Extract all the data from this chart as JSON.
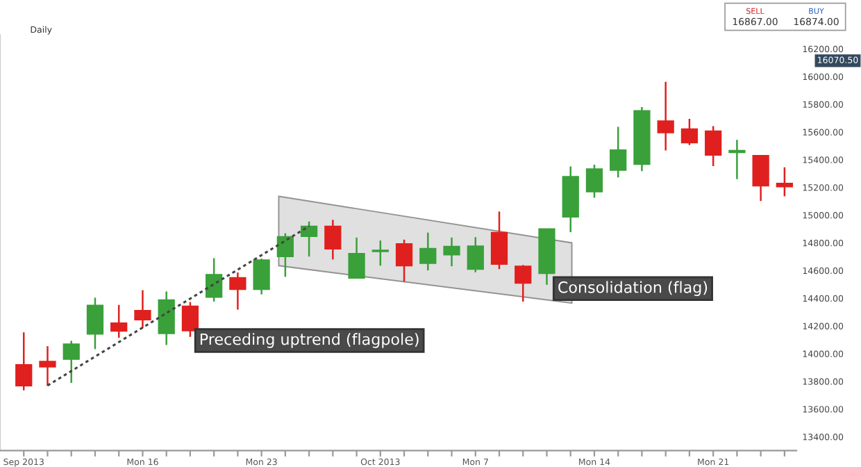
{
  "chart_data": {
    "type": "candlestick",
    "title": "Daily",
    "categories": [
      "Sep 2013",
      null,
      null,
      null,
      null,
      "Mon 16",
      null,
      null,
      null,
      null,
      "Mon 23",
      null,
      null,
      null,
      null,
      "Oct 2013",
      null,
      null,
      null,
      "Mon 7",
      null,
      null,
      null,
      null,
      "Mon 14",
      null,
      null,
      null,
      null,
      "Mon 21",
      null,
      null,
      null
    ],
    "ohlc": [
      [
        13920,
        14154,
        13735,
        13768
      ],
      [
        13944,
        14054,
        13768,
        13905
      ],
      [
        13960,
        14093,
        13789,
        14069
      ],
      [
        14142,
        14404,
        14033,
        14349
      ],
      [
        14221,
        14352,
        14115,
        14163
      ],
      [
        14312,
        14458,
        14185,
        14245
      ],
      [
        14145,
        14449,
        14063,
        14388
      ],
      [
        14343,
        14373,
        14121,
        14166
      ],
      [
        14407,
        14689,
        14376,
        14571
      ],
      [
        14549,
        14586,
        14318,
        14464
      ],
      [
        14464,
        14686,
        14428,
        14677
      ],
      [
        14701,
        14869,
        14555,
        14844
      ],
      [
        14847,
        14954,
        14701,
        14920
      ],
      [
        14920,
        14966,
        14680,
        14756
      ],
      [
        14546,
        14838,
        14543,
        14723
      ],
      [
        14738,
        14817,
        14635,
        14747
      ],
      [
        14793,
        14823,
        14519,
        14635
      ],
      [
        14652,
        14874,
        14601,
        14759
      ],
      [
        14713,
        14838,
        14631,
        14774
      ],
      [
        14610,
        14841,
        14588,
        14777
      ],
      [
        14874,
        15026,
        14610,
        14646
      ],
      [
        14631,
        14640,
        14376,
        14509
      ],
      [
        14579,
        14901,
        14497,
        14901
      ],
      [
        14987,
        15351,
        14877,
        15278
      ],
      [
        15169,
        15364,
        15126,
        15333
      ],
      [
        15324,
        15637,
        15272,
        15470
      ],
      [
        15367,
        15780,
        15318,
        15753
      ],
      [
        15680,
        15962,
        15467,
        15595
      ],
      [
        15622,
        15695,
        15506,
        15522
      ],
      [
        15607,
        15643,
        15354,
        15433
      ],
      [
        15452,
        15543,
        15260,
        15467
      ],
      [
        15430,
        15430,
        15102,
        15212
      ],
      [
        15230,
        15345,
        15136,
        15205
      ]
    ],
    "colors": [
      "#e0201e",
      "#e0201e",
      "#3aa03a",
      "#3aa03a",
      "#e0201e",
      "#e0201e",
      "#3aa03a",
      "#e0201e",
      "#3aa03a",
      "#e0201e",
      "#3aa03a",
      "#3aa03a",
      "#3aa03a",
      "#e0201e",
      "#3aa03a",
      "#3aa03a",
      "#e0201e",
      "#3aa03a",
      "#3aa03a",
      "#3aa03a",
      "#e0201e",
      "#e0201e",
      "#3aa03a",
      "#3aa03a",
      "#3aa03a",
      "#3aa03a",
      "#3aa03a",
      "#e0201e",
      "#e0201e",
      "#e0201e",
      "#3aa03a",
      "#e0201e",
      "#e0201e"
    ],
    "ylim": [
      13300,
      16300
    ],
    "yticks": [
      {
        "value": 13400,
        "label": "13400.00"
      },
      {
        "value": 13600,
        "label": "13600.00"
      },
      {
        "value": 13800,
        "label": "13800.00"
      },
      {
        "value": 14000,
        "label": "14000.00"
      },
      {
        "value": 14200,
        "label": "14200.00"
      },
      {
        "value": 14400,
        "label": "14400.00"
      },
      {
        "value": 14600,
        "label": "14600.00"
      },
      {
        "value": 14800,
        "label": "14800.00"
      },
      {
        "value": 15000,
        "label": "15000.00"
      },
      {
        "value": 15200,
        "label": "15200.00"
      },
      {
        "value": 15400,
        "label": "15400.00"
      },
      {
        "value": 15600,
        "label": "15600.00"
      },
      {
        "value": 15800,
        "label": "15800.00"
      },
      {
        "value": 16000,
        "label": "16000.00"
      },
      {
        "value": 16200,
        "label": "16200.00"
      }
    ],
    "grid": false,
    "series": [
      {
        "type": "line",
        "values": [
          null,
          13770,
          null,
          null,
          null,
          null,
          null,
          null,
          null,
          null,
          null,
          null,
          14920,
          null,
          null,
          null,
          null,
          null,
          null,
          null,
          null,
          null,
          null,
          null,
          null,
          null,
          null,
          null,
          null,
          null,
          null,
          null,
          null
        ],
        "color": "#444444",
        "line_style": "dotted"
      }
    ],
    "annotations": [
      "Preceding uptrend (flagpole)",
      "Consolidation (flag)",
      "SELL",
      "16867.00",
      "BUY",
      "16874.00",
      "16070.50"
    ]
  }
}
